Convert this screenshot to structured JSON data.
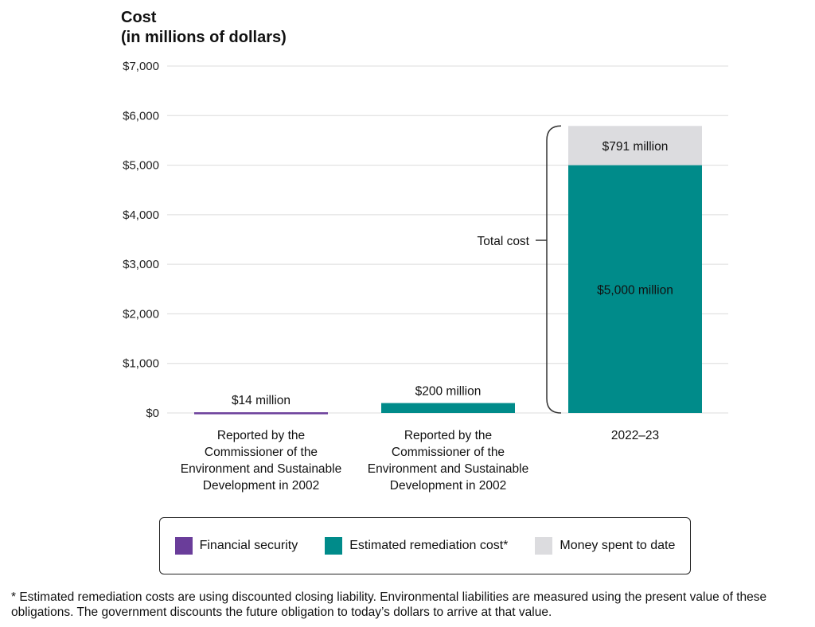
{
  "chart_data": {
    "type": "bar",
    "stacked": true,
    "title": "Cost\n(in millions of dollars)",
    "title_lines": [
      "Cost",
      "(in millions of dollars)"
    ],
    "ylim": [
      0,
      7000
    ],
    "yticks": [
      0,
      1000,
      2000,
      3000,
      4000,
      5000,
      6000,
      7000
    ],
    "ytick_labels": [
      "$0",
      "$1,000",
      "$2,000",
      "$3,000",
      "$4,000",
      "$5,000",
      "$6,000",
      "$7,000"
    ],
    "grid": true,
    "categories": [
      [
        "Reported by the",
        "Commissioner of the",
        "Environment and Sustainable",
        "Development in 2002"
      ],
      [
        "Reported by the",
        "Commissioner of the",
        "Environment and Sustainable",
        "Development in 2002"
      ],
      [
        "2022–23"
      ]
    ],
    "series": [
      {
        "name": "Financial security",
        "color": "#6a3d9a",
        "values": [
          14,
          0,
          0
        ],
        "labels": [
          "$14 million",
          "",
          ""
        ]
      },
      {
        "name": "Estimated remediation cost*",
        "color": "#008b8a",
        "values": [
          0,
          200,
          5000
        ],
        "labels": [
          "",
          "$200 million",
          "$5,000 million"
        ]
      },
      {
        "name": "Money spent to date",
        "color": "#dcdcdf",
        "values": [
          0,
          0,
          791
        ],
        "labels": [
          "",
          "",
          "$791 million"
        ]
      }
    ],
    "annotation": "Total cost",
    "legend_position": "bottom"
  },
  "footnote": "* Estimated remediation costs are using discounted closing liability. Environmental liabilities are measured using the present value of these obligations. The government discounts the future obligation to today’s dollars to arrive at that value."
}
